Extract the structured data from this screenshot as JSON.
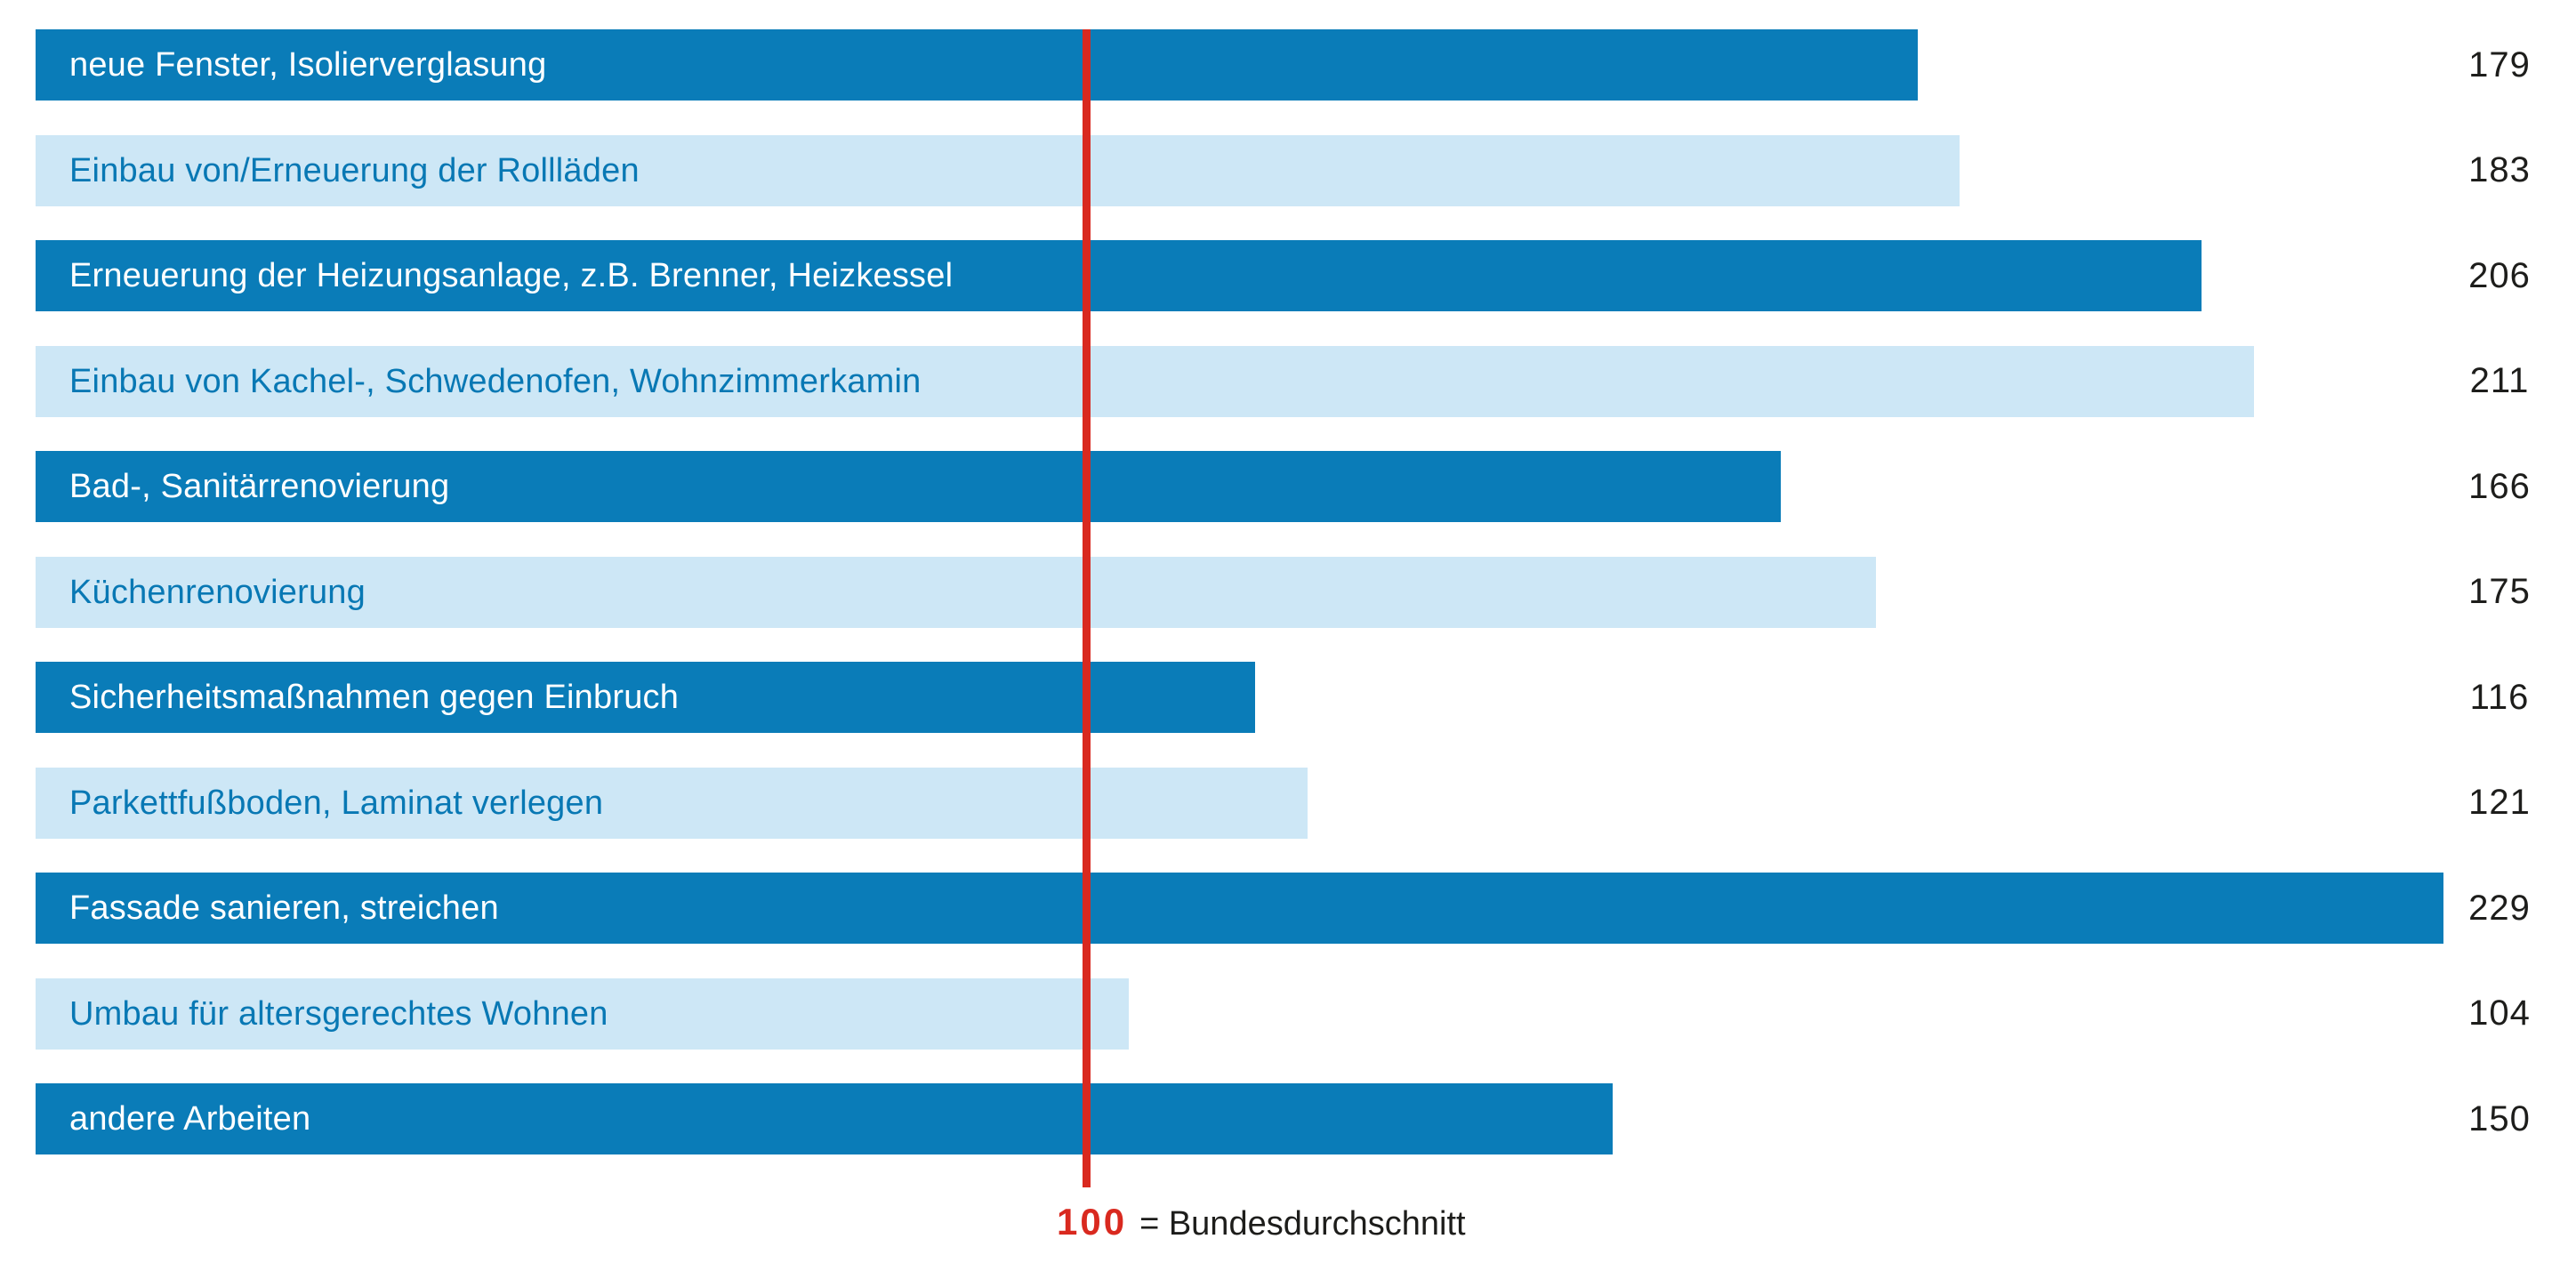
{
  "chart_data": {
    "type": "bar",
    "orientation": "horizontal",
    "title": "",
    "xlabel": "",
    "ylabel": "",
    "xlim": [
      0,
      240
    ],
    "grid": false,
    "legend_position": "bottom",
    "categories": [
      "neue Fenster, Isolierverglasung",
      "Einbau von/Erneuerung der Rollläden",
      "Erneuerung der Heizungsanlage, z.B. Brenner, Heizkessel",
      "Einbau von Kachel-, Schwedenofen, Wohnzimmerkamin",
      "Bad-, Sanitärrenovierung",
      "Küchenrenovierung",
      "Sicherheitsmaßnahmen gegen Einbruch",
      "Parkettfußboden, Laminat verlegen",
      "Fassade sanieren, streichen",
      "Umbau für altersgerechtes Wohnen",
      "andere Arbeiten"
    ],
    "values": [
      179,
      183,
      206,
      211,
      166,
      175,
      116,
      121,
      229,
      104,
      150
    ],
    "bar_style_alternation": [
      "dark",
      "light"
    ],
    "reference_line": {
      "value": 100,
      "label": "100",
      "legend": "= Bundesdurchschnitt"
    },
    "colors": {
      "bar_dark": "#0a7cb8",
      "bar_light": "#cde7f6",
      "label_on_dark": "#ffffff",
      "label_on_light": "#0878b4",
      "value_text": "#1d1d1b",
      "reference_line": "#d9291f"
    }
  },
  "footer": {
    "value": "100",
    "text": "= Bundesdurchschnitt"
  }
}
